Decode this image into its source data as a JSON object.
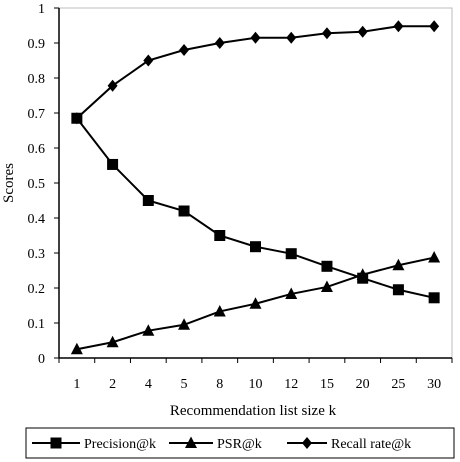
{
  "chart_data": {
    "type": "line",
    "title": "",
    "xlabel": "Recommendation list size k",
    "ylabel": "Scores",
    "categories": [
      "1",
      "2",
      "4",
      "5",
      "8",
      "10",
      "12",
      "15",
      "20",
      "25",
      "30"
    ],
    "ylim": [
      0,
      1
    ],
    "yticks": [
      "0",
      "0.1",
      "0.2",
      "0.3",
      "0.4",
      "0.5",
      "0.6",
      "0.7",
      "0.8",
      "0.9",
      "1"
    ],
    "grid": false,
    "legend_position": "bottom",
    "series": [
      {
        "name": "Precision@k",
        "marker": "square",
        "values": [
          0.685,
          0.553,
          0.45,
          0.42,
          0.35,
          0.318,
          0.298,
          0.262,
          0.228,
          0.195,
          0.172
        ]
      },
      {
        "name": "PSR@k",
        "marker": "triangle",
        "values": [
          0.025,
          0.045,
          0.078,
          0.095,
          0.133,
          0.155,
          0.183,
          0.203,
          0.238,
          0.265,
          0.287
        ]
      },
      {
        "name": "Recall rate@k",
        "marker": "diamond",
        "values": [
          0.685,
          0.778,
          0.85,
          0.88,
          0.9,
          0.915,
          0.915,
          0.928,
          0.932,
          0.948,
          0.948
        ]
      }
    ],
    "colors": {
      "line": "#000000"
    }
  }
}
